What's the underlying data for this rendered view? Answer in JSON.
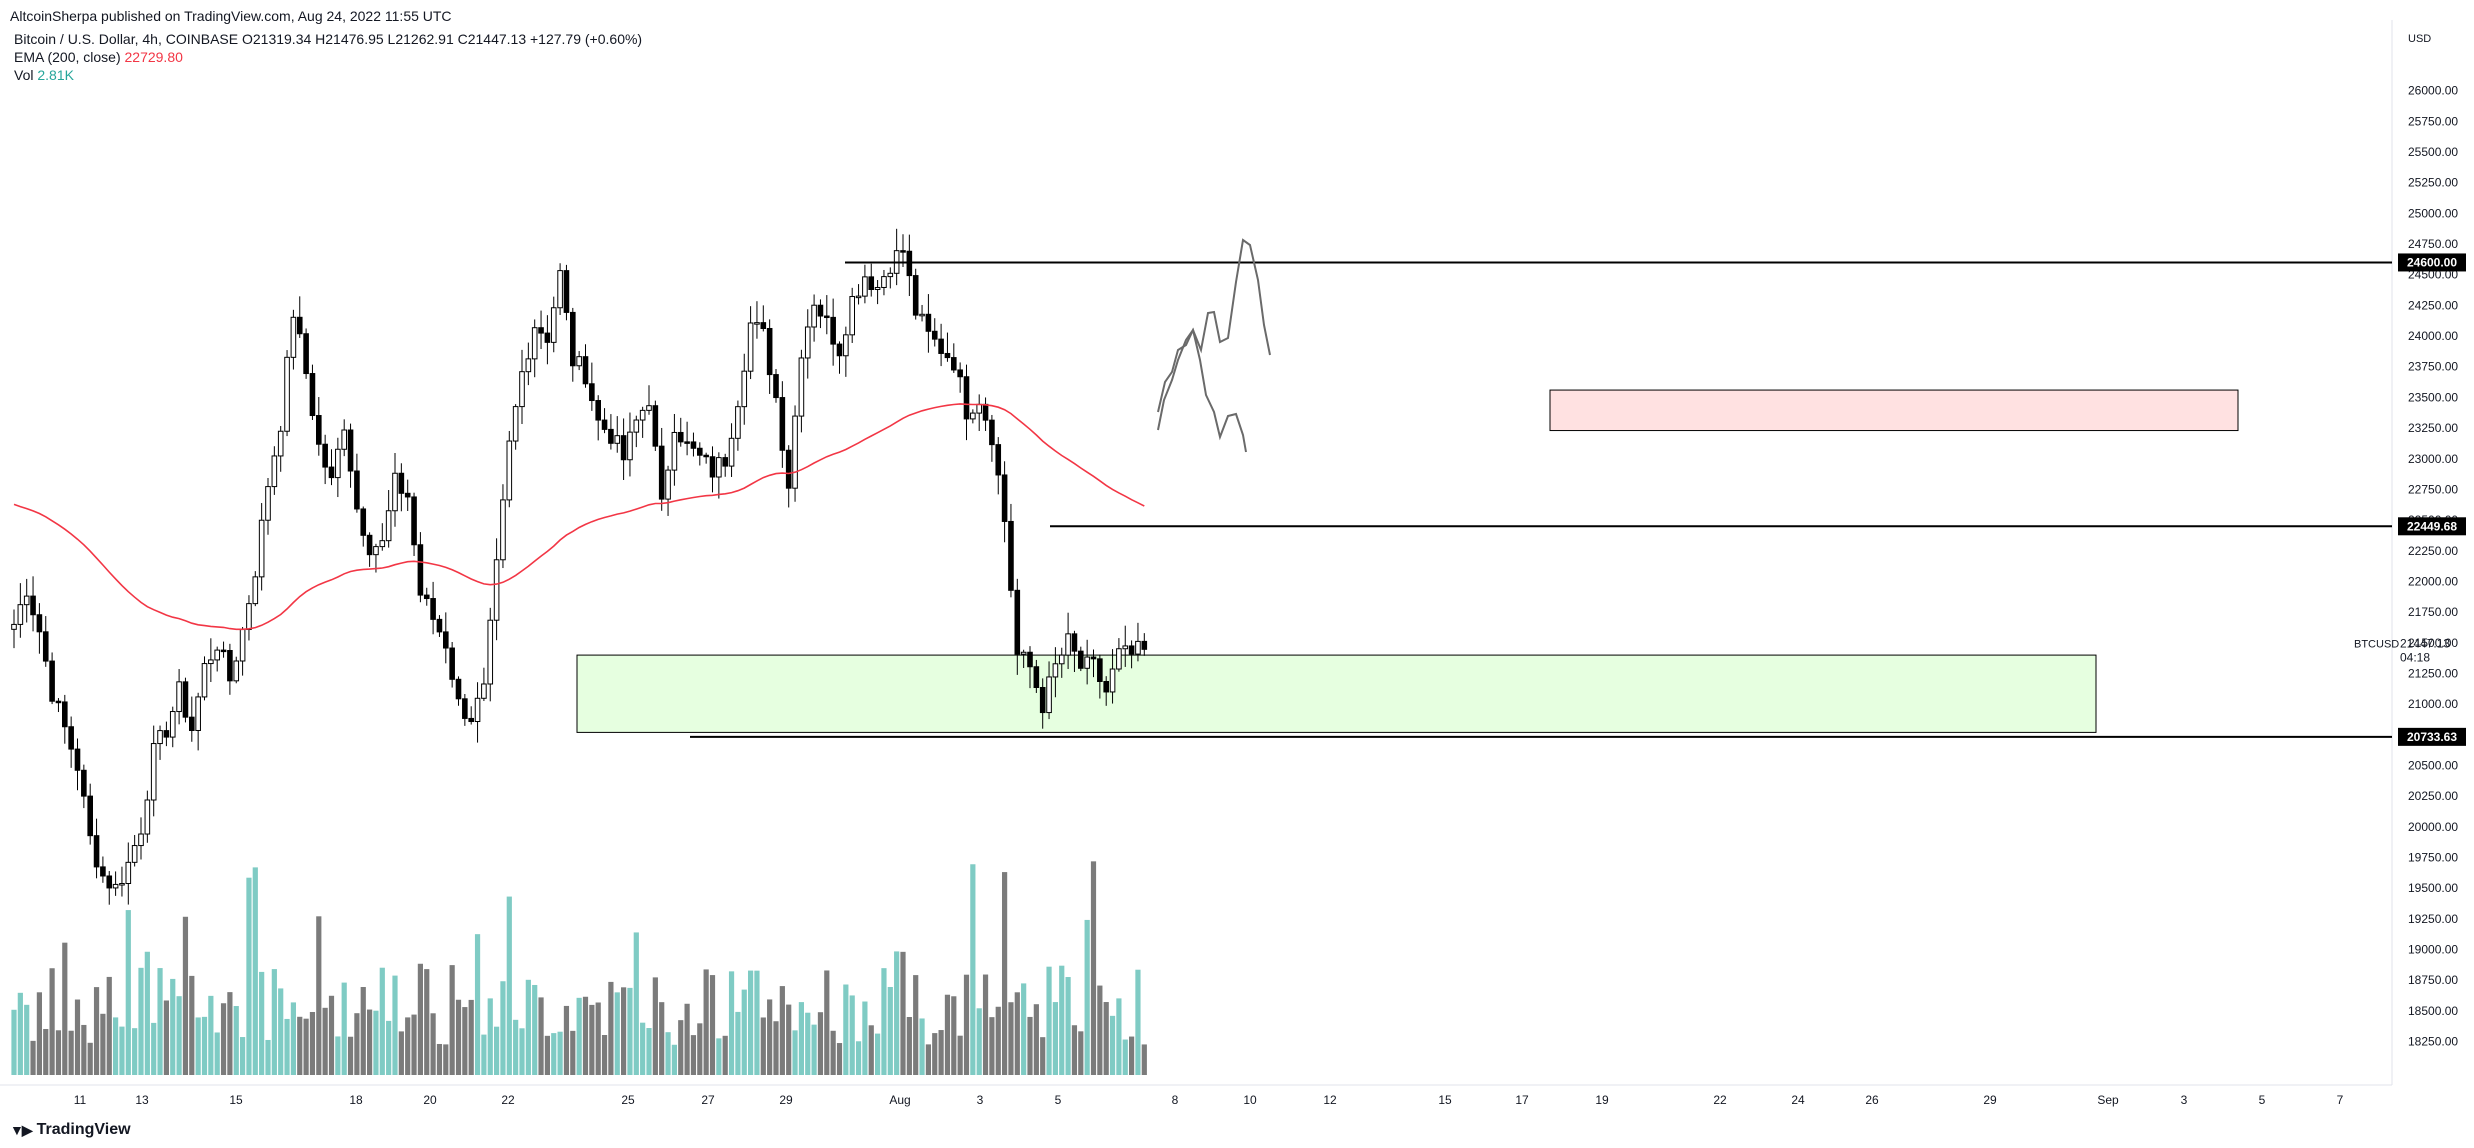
{
  "header": {
    "published": "AltcoinSherpa published on TradingView.com, Aug 24, 2022 11:55 UTC"
  },
  "legend": {
    "symbol": "Bitcoin / U.S. Dollar, 4h, COINBASE",
    "ohlc": "O21319.34 H21476.95 L21262.91 C21447.13 +127.79 (+0.60%)",
    "ema_label": "EMA (200, close)",
    "ema_value": "22729.80",
    "vol_label": "Vol",
    "vol_value": "2.81K"
  },
  "footer": {
    "brand": "TradingView"
  },
  "colors": {
    "bull_candle": "#ffffff",
    "bear_candle": "#000000",
    "ema": "#f23645",
    "vol_up": "#7fcbc4",
    "vol_down": "#7b7b7b",
    "support_zone": "#e6ffe0",
    "resist_zone": "#ffe1e1"
  },
  "chart_data": {
    "type": "candlestick",
    "symbol": "BTCUSD",
    "timeframe": "4h",
    "y_axis_unit": "USD",
    "ylim": [
      18100,
      26250
    ],
    "y_ticks": [
      "26000.00",
      "25750.00",
      "25500.00",
      "25250.00",
      "25000.00",
      "24750.00",
      "24500.00",
      "24250.00",
      "24000.00",
      "23750.00",
      "23500.00",
      "23250.00",
      "23000.00",
      "22750.00",
      "22500.00",
      "22250.00",
      "22000.00",
      "21750.00",
      "21500.00",
      "21250.00",
      "21000.00",
      "20750.00",
      "20500.00",
      "20250.00",
      "20000.00",
      "19750.00",
      "19500.00",
      "19250.00",
      "19000.00",
      "18750.00",
      "18500.00",
      "18250.00"
    ],
    "x_ticks": [
      "11",
      "13",
      "15",
      "18",
      "20",
      "22",
      "25",
      "27",
      "29",
      "Aug",
      "3",
      "5",
      "8",
      "10",
      "12",
      "15",
      "17",
      "19",
      "22",
      "24",
      "26",
      "29",
      "Sep",
      "3",
      "5",
      "7"
    ],
    "price_levels": [
      {
        "label": "24600.00",
        "value": 24600.0
      },
      {
        "label": "22449.68",
        "value": 22449.68
      },
      {
        "label": "20733.63",
        "value": 20733.63
      }
    ],
    "current_price": {
      "symbol": "BTCUSD",
      "value": "21447.13",
      "countdown": "04:18"
    },
    "last_candle": {
      "open": 21319.34,
      "high": 21476.95,
      "low": 21262.91,
      "close": 21447.13
    },
    "ema200_value": 22729.8,
    "zones": [
      {
        "type": "support",
        "top": 21400,
        "bottom": 20770
      },
      {
        "type": "resistance",
        "top": 23560,
        "bottom": 23230
      }
    ],
    "close_path": [
      [
        1,
        21650
      ],
      [
        3,
        21950
      ],
      [
        5,
        21600
      ],
      [
        7,
        21100
      ],
      [
        9,
        20800
      ],
      [
        11,
        20500
      ],
      [
        13,
        19900
      ],
      [
        15,
        19600
      ],
      [
        17,
        19500
      ],
      [
        19,
        19700
      ],
      [
        21,
        20000
      ],
      [
        23,
        20600
      ],
      [
        25,
        20800
      ],
      [
        27,
        21100
      ],
      [
        29,
        20800
      ],
      [
        31,
        21300
      ],
      [
        33,
        21500
      ],
      [
        35,
        21200
      ],
      [
        37,
        21600
      ],
      [
        39,
        22100
      ],
      [
        41,
        22800
      ],
      [
        43,
        23300
      ],
      [
        45,
        24200
      ],
      [
        47,
        23700
      ],
      [
        49,
        23100
      ],
      [
        51,
        22800
      ],
      [
        53,
        23300
      ],
      [
        55,
        22600
      ],
      [
        57,
        22300
      ],
      [
        59,
        22300
      ],
      [
        61,
        22800
      ],
      [
        63,
        22700
      ],
      [
        65,
        21900
      ],
      [
        67,
        21700
      ],
      [
        69,
        21500
      ],
      [
        71,
        21000
      ],
      [
        73,
        20900
      ],
      [
        75,
        21100
      ],
      [
        77,
        22100
      ],
      [
        79,
        23100
      ],
      [
        81,
        23700
      ],
      [
        83,
        24100
      ],
      [
        85,
        24000
      ],
      [
        87,
        24500
      ],
      [
        89,
        23800
      ],
      [
        91,
        23700
      ],
      [
        93,
        23300
      ],
      [
        95,
        23200
      ],
      [
        97,
        23000
      ],
      [
        99,
        23300
      ],
      [
        101,
        23500
      ],
      [
        103,
        22600
      ],
      [
        105,
        23300
      ],
      [
        107,
        23100
      ],
      [
        109,
        23000
      ],
      [
        111,
        22900
      ],
      [
        113,
        23000
      ],
      [
        115,
        23500
      ],
      [
        117,
        24100
      ],
      [
        119,
        24000
      ],
      [
        121,
        23500
      ],
      [
        123,
        22800
      ],
      [
        125,
        23900
      ],
      [
        127,
        24300
      ],
      [
        129,
        24100
      ],
      [
        131,
        23900
      ],
      [
        133,
        24300
      ],
      [
        135,
        24500
      ],
      [
        137,
        24400
      ],
      [
        139,
        24600
      ],
      [
        141,
        24700
      ],
      [
        143,
        24200
      ],
      [
        145,
        24000
      ],
      [
        147,
        23900
      ],
      [
        149,
        23800
      ],
      [
        151,
        23400
      ],
      [
        153,
        23500
      ],
      [
        155,
        23200
      ],
      [
        157,
        22500
      ],
      [
        159,
        21400
      ],
      [
        161,
        21300
      ],
      [
        163,
        21000
      ],
      [
        165,
        21300
      ],
      [
        167,
        21500
      ],
      [
        169,
        21300
      ],
      [
        171,
        21300
      ],
      [
        173,
        21100
      ],
      [
        175,
        21400
      ],
      [
        177,
        21400
      ],
      [
        179,
        21447
      ]
    ],
    "projection": [
      [
        1158,
        412
      ],
      [
        1165,
        382
      ],
      [
        1172,
        372
      ],
      [
        1178,
        350
      ],
      [
        1186,
        345
      ],
      [
        1193,
        330
      ],
      [
        1201,
        350
      ],
      [
        1208,
        313
      ],
      [
        1214,
        312
      ],
      [
        1220,
        342
      ],
      [
        1228,
        338
      ],
      [
        1236,
        282
      ],
      [
        1243,
        240
      ],
      [
        1250,
        245
      ],
      [
        1258,
        280
      ],
      [
        1264,
        325
      ],
      [
        1270,
        355
      ]
    ],
    "projection_alt": [
      [
        1158,
        430
      ],
      [
        1164,
        400
      ],
      [
        1172,
        380
      ],
      [
        1178,
        360
      ],
      [
        1186,
        340
      ],
      [
        1193,
        330
      ],
      [
        1200,
        360
      ],
      [
        1206,
        395
      ],
      [
        1214,
        412
      ],
      [
        1220,
        437
      ],
      [
        1228,
        416
      ],
      [
        1236,
        414
      ],
      [
        1243,
        435
      ],
      [
        1246,
        452
      ]
    ]
  }
}
